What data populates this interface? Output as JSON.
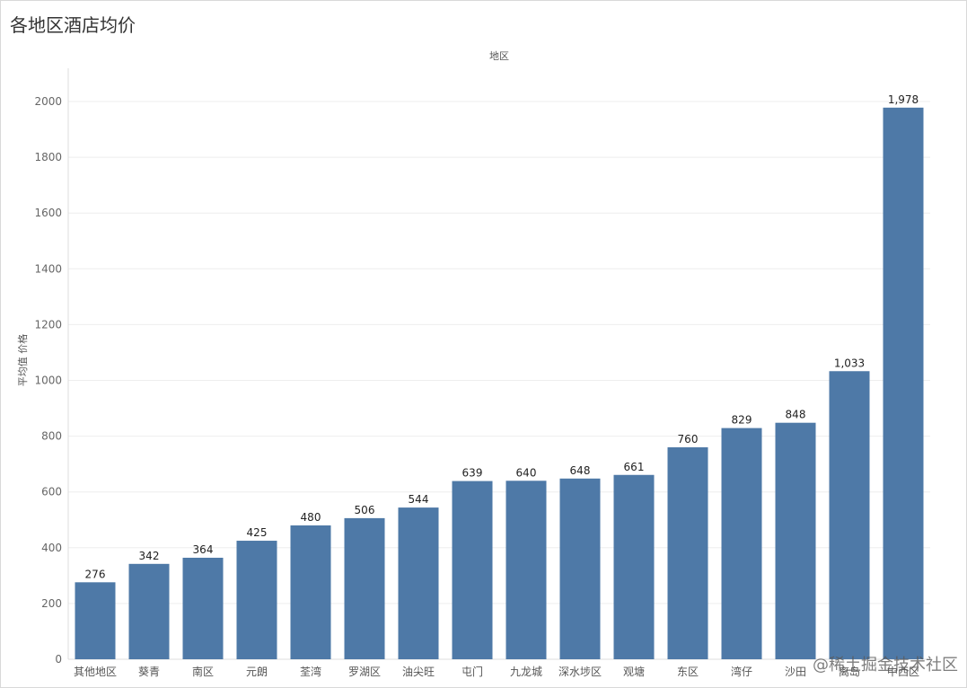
{
  "page": {
    "title": "各地区酒店均价",
    "watermark": "@稀土掘金技术社区"
  },
  "chart_data": {
    "type": "bar",
    "title": "各地区酒店均价",
    "xlabel": "地区",
    "ylabel": "平均值 价格",
    "categories": [
      "其他地区",
      "葵青",
      "南区",
      "元朗",
      "荃湾",
      "罗湖区",
      "油尖旺",
      "屯门",
      "九龙城",
      "深水埗区",
      "观塘",
      "东区",
      "湾仔",
      "沙田",
      "离岛",
      "中西区"
    ],
    "values": [
      276,
      342,
      364,
      425,
      480,
      506,
      544,
      639,
      640,
      648,
      661,
      760,
      829,
      848,
      1033,
      1978
    ],
    "value_labels": [
      "276",
      "342",
      "364",
      "425",
      "480",
      "506",
      "544",
      "639",
      "640",
      "648",
      "661",
      "760",
      "829",
      "848",
      "1,033",
      "1,978"
    ],
    "y_ticks": [
      0,
      200,
      400,
      600,
      800,
      1000,
      1200,
      1400,
      1600,
      1800,
      2000
    ],
    "ylim": [
      0,
      2130
    ],
    "grid": true,
    "bar_color": "#4e79a7",
    "grid_color": "#eeeeee"
  }
}
